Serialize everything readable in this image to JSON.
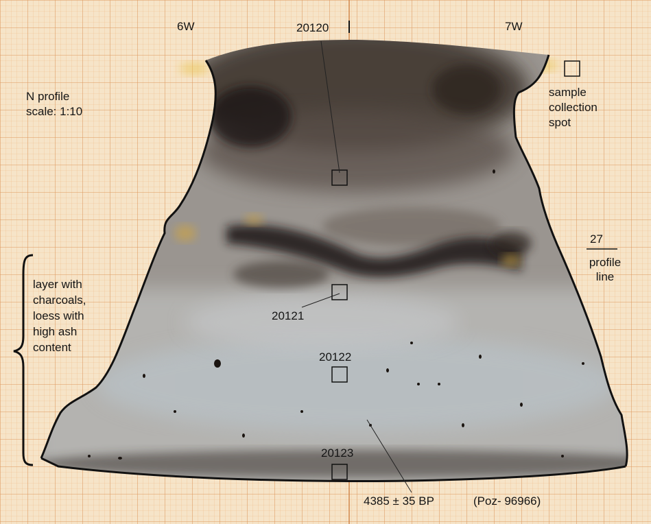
{
  "grid_labels": {
    "west_6": "6W",
    "west_7": "7W",
    "line_27": "27",
    "line_27_caption": "profile line"
  },
  "title": {
    "line1": "N profile",
    "line2": "scale: 1:10"
  },
  "legend_sample": {
    "line1": "sample",
    "line2": "collection",
    "line3": "spot"
  },
  "layer_note": {
    "line1": "layer with",
    "line2": "charcoals,",
    "line3": "loess with",
    "line4": "high ash",
    "line5": "content"
  },
  "samples": [
    {
      "id": "20120"
    },
    {
      "id": "20121"
    },
    {
      "id": "20122"
    },
    {
      "id": "20123"
    }
  ],
  "dating": {
    "value": "4385 ± 35 BP",
    "lab_code": "(Poz- 96966)"
  },
  "colors": {
    "paper": "#f6e4c8",
    "grid_line": "#e8a86a",
    "outline": "#111111",
    "dark_soil": "#2e2620",
    "mid_soil": "#7b7068",
    "light_soil": "#b4b2ae",
    "ochre": "#c9a24a"
  }
}
